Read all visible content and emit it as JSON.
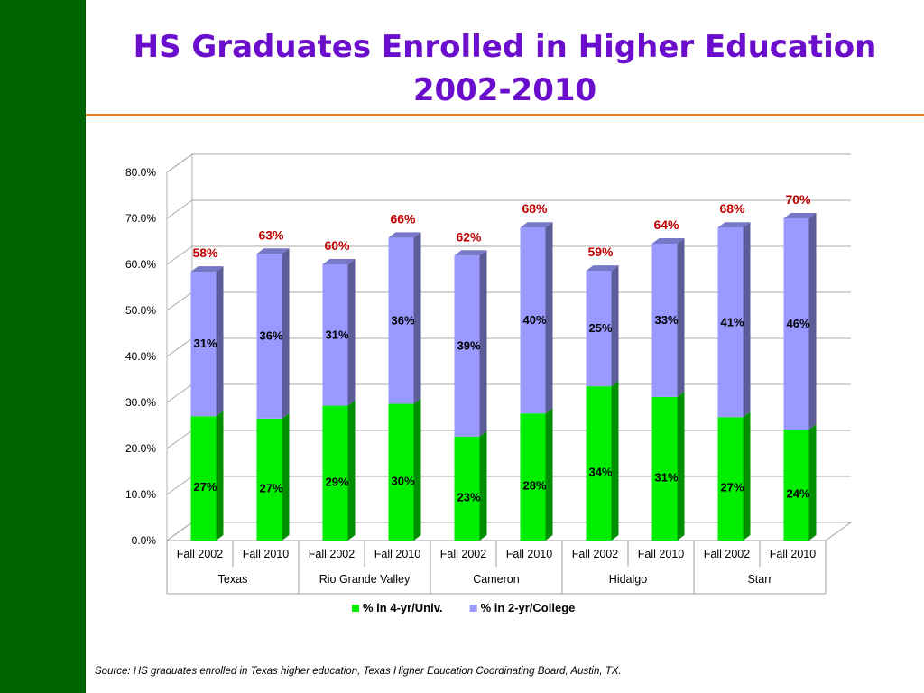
{
  "slide": {
    "title_line1": "HS Graduates Enrolled in Higher Education",
    "title_line2": "2002-2010",
    "source": "Source: HS graduates enrolled in Texas higher education, Texas Higher Education Coordinating Board, Austin, TX."
  },
  "colors": {
    "sidebar": "#006400",
    "title": "#6a0dcc",
    "rule": "#f07a10",
    "series_4yr": "#00ee00",
    "series_2yr": "#9999ff",
    "total_label": "#c00000"
  },
  "chart_data": {
    "type": "bar",
    "stacked": true,
    "three_d": true,
    "categories": [
      "Fall 2002",
      "Fall 2010",
      "Fall 2002",
      "Fall 2010",
      "Fall 2002",
      "Fall 2010",
      "Fall 2002",
      "Fall 2010",
      "Fall 2002",
      "Fall 2010"
    ],
    "groups": [
      "Texas",
      "Rio Grande Valley",
      "Cameron",
      "Hidalgo",
      "Starr"
    ],
    "series": [
      {
        "name": "% in 4-yr/Univ.",
        "values": [
          27,
          26.5,
          29.3,
          29.7,
          22.6,
          27.6,
          33.5,
          31.2,
          26.8,
          24.1
        ],
        "labels": [
          "27%",
          "27%",
          "29%",
          "30%",
          "23%",
          "28%",
          "34%",
          "31%",
          "27%",
          "24%"
        ]
      },
      {
        "name": "% in 2-yr/College",
        "values": [
          31.4,
          35.8,
          30.7,
          36.1,
          39.3,
          40.4,
          25.1,
          33.3,
          41.2,
          45.9
        ],
        "labels": [
          "31%",
          "36%",
          "31%",
          "36%",
          "39%",
          "40%",
          "25%",
          "33%",
          "41%",
          "46%"
        ]
      }
    ],
    "total_labels": [
      "58%",
      "63%",
      "60%",
      "66%",
      "62%",
      "68%",
      "59%",
      "64%",
      "68%",
      "70%"
    ],
    "yticks": [
      "0.0%",
      "10.0%",
      "20.0%",
      "30.0%",
      "40.0%",
      "50.0%",
      "60.0%",
      "70.0%",
      "80.0%"
    ],
    "ylim": [
      0,
      80
    ],
    "grid": true,
    "legend": "bottom",
    "xlabel": "",
    "ylabel": ""
  }
}
